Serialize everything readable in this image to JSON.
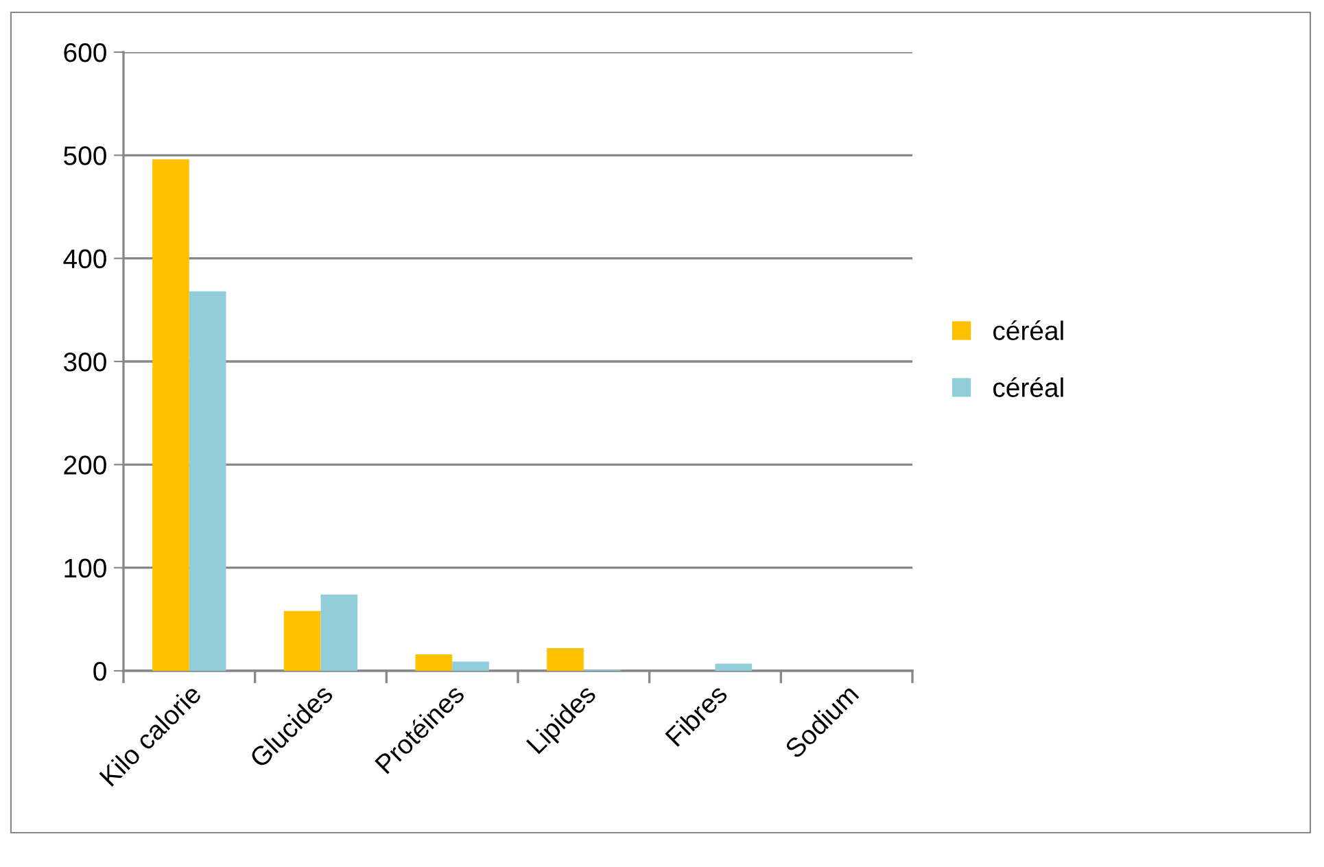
{
  "chart_data": {
    "type": "bar",
    "categories": [
      "Kilo calorie",
      "Glucides",
      "Protéines",
      "Lipides",
      "Fibres",
      "Sodium"
    ],
    "series": [
      {
        "name": "céréal",
        "color": "#ffc000",
        "values": [
          496,
          58,
          16,
          22,
          0,
          0
        ]
      },
      {
        "name": "céréal",
        "color": "#92cddc",
        "values": [
          368,
          74,
          9,
          1,
          7,
          0
        ]
      }
    ],
    "ylim": [
      0,
      600
    ],
    "yticks": [
      0,
      100,
      200,
      300,
      400,
      500,
      600
    ],
    "grid": "y",
    "legend": "right"
  }
}
